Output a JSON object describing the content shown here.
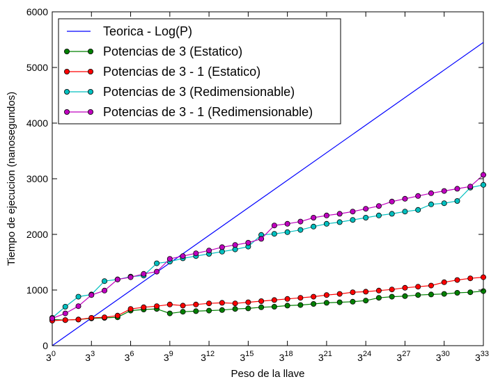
{
  "chart_data": {
    "type": "line",
    "xlabel": "Peso de la llave",
    "ylabel": "Tiempo de ejecucion (nanosegundos)",
    "xlim": [
      0,
      33
    ],
    "ylim": [
      0,
      6000
    ],
    "x_ticks": [
      0,
      3,
      6,
      9,
      12,
      15,
      18,
      21,
      24,
      27,
      30,
      33
    ],
    "x_tick_base": "3",
    "y_ticks": [
      0,
      1000,
      2000,
      3000,
      4000,
      5000,
      6000
    ],
    "y_tick_labels": [
      "0",
      "1000",
      "2000",
      "3000",
      "4000",
      "5000",
      "6000"
    ],
    "legend_position": "top-left",
    "grid": false,
    "series": [
      {
        "name": "Teorica - Log(P)",
        "color": "#0000ff",
        "marker": false,
        "x": [
          0,
          33
        ],
        "y": [
          0,
          5450
        ]
      },
      {
        "name": "Potencias de 3 (Estatico)",
        "color": "#008000",
        "marker": true,
        "x": [
          0,
          1,
          2,
          3,
          4,
          5,
          6,
          7,
          8,
          9,
          10,
          11,
          12,
          13,
          14,
          15,
          16,
          17,
          18,
          19,
          20,
          21,
          22,
          23,
          24,
          25,
          26,
          27,
          28,
          29,
          30,
          31,
          32,
          33
        ],
        "y": [
          470,
          460,
          470,
          490,
          500,
          510,
          630,
          650,
          660,
          580,
          610,
          620,
          630,
          640,
          660,
          670,
          690,
          700,
          720,
          730,
          750,
          770,
          780,
          790,
          810,
          860,
          880,
          890,
          910,
          920,
          930,
          950,
          960,
          980
        ]
      },
      {
        "name": "Potencias de 3 - 1 (Estatico)",
        "color": "#ff0000",
        "marker": true,
        "x": [
          0,
          1,
          2,
          3,
          4,
          5,
          6,
          7,
          8,
          9,
          10,
          11,
          12,
          13,
          14,
          15,
          16,
          17,
          18,
          19,
          20,
          21,
          22,
          23,
          24,
          25,
          26,
          27,
          28,
          29,
          30,
          31,
          32,
          33
        ],
        "y": [
          450,
          460,
          470,
          500,
          510,
          540,
          660,
          690,
          710,
          740,
          720,
          740,
          760,
          770,
          760,
          780,
          800,
          820,
          840,
          860,
          880,
          910,
          930,
          960,
          970,
          990,
          1010,
          1040,
          1060,
          1080,
          1140,
          1180,
          1210,
          1230
        ]
      },
      {
        "name": "Potencias de 3 (Redimensionable)",
        "color": "#00bfbf",
        "marker": true,
        "x": [
          0,
          1,
          2,
          3,
          4,
          5,
          6,
          7,
          8,
          9,
          10,
          11,
          12,
          13,
          14,
          15,
          16,
          17,
          18,
          19,
          20,
          21,
          22,
          23,
          24,
          25,
          26,
          27,
          28,
          29,
          30,
          31,
          32,
          33
        ],
        "y": [
          500,
          700,
          880,
          920,
          1160,
          1190,
          1240,
          1260,
          1480,
          1510,
          1570,
          1610,
          1650,
          1690,
          1730,
          1780,
          1990,
          2010,
          2040,
          2080,
          2140,
          2190,
          2220,
          2260,
          2300,
          2340,
          2370,
          2410,
          2440,
          2540,
          2560,
          2600,
          2840,
          2890
        ]
      },
      {
        "name": "Potencias de 3 - 1 (Redimensionable)",
        "color": "#bf00bf",
        "marker": true,
        "x": [
          0,
          1,
          2,
          3,
          4,
          5,
          6,
          7,
          8,
          9,
          10,
          11,
          12,
          13,
          14,
          15,
          16,
          17,
          18,
          19,
          20,
          21,
          22,
          23,
          24,
          25,
          26,
          27,
          28,
          29,
          30,
          31,
          32,
          33
        ],
        "y": [
          490,
          580,
          710,
          910,
          990,
          1190,
          1230,
          1290,
          1330,
          1560,
          1610,
          1660,
          1710,
          1770,
          1810,
          1850,
          1920,
          2160,
          2190,
          2230,
          2300,
          2340,
          2370,
          2410,
          2460,
          2510,
          2590,
          2640,
          2690,
          2740,
          2780,
          2820,
          2860,
          3070
        ]
      }
    ]
  }
}
